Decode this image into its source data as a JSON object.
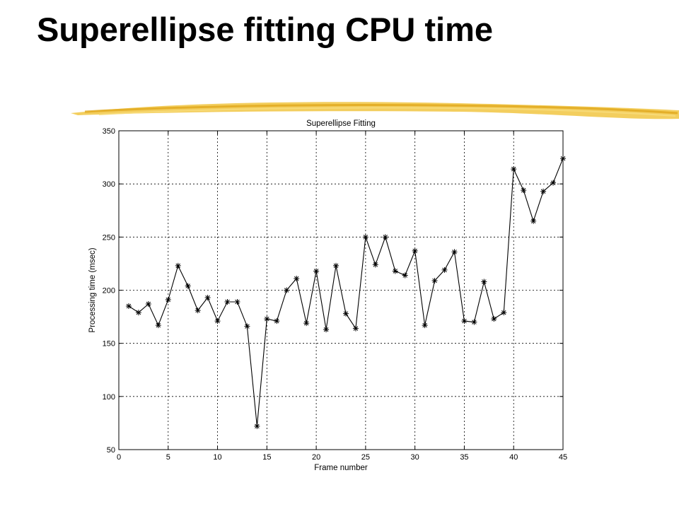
{
  "slide": {
    "title": "Superellipse fitting CPU time"
  },
  "chart_data": {
    "type": "line",
    "title": "Superellipse Fitting",
    "xlabel": "Frame number",
    "ylabel": "Processing time (msec)",
    "xlim": [
      0,
      45
    ],
    "ylim": [
      50,
      350
    ],
    "xticks": [
      0,
      5,
      10,
      15,
      20,
      25,
      30,
      35,
      40,
      45
    ],
    "yticks": [
      50,
      100,
      150,
      200,
      250,
      300,
      350
    ],
    "grid": true,
    "marker": "*",
    "series": [
      {
        "x": [
          1,
          2,
          3,
          4,
          5,
          6,
          7,
          8,
          9,
          10,
          11,
          12,
          13,
          14,
          15,
          16,
          17,
          18,
          19,
          20,
          21,
          22,
          23,
          24,
          25,
          26,
          27,
          28,
          29,
          30,
          31,
          32,
          33,
          34,
          35,
          36,
          37,
          38,
          39,
          40,
          41,
          42,
          43,
          44,
          45
        ],
        "values": [
          185,
          179,
          187,
          167,
          191,
          223,
          204,
          181,
          193,
          171,
          189,
          189,
          166,
          72,
          173,
          171,
          200,
          211,
          169,
          218,
          163,
          223,
          178,
          164,
          250,
          224,
          250,
          218,
          214,
          237,
          167,
          209,
          219,
          236,
          171,
          170,
          208,
          173,
          179,
          314,
          294,
          265,
          293,
          301,
          324
        ]
      }
    ]
  }
}
